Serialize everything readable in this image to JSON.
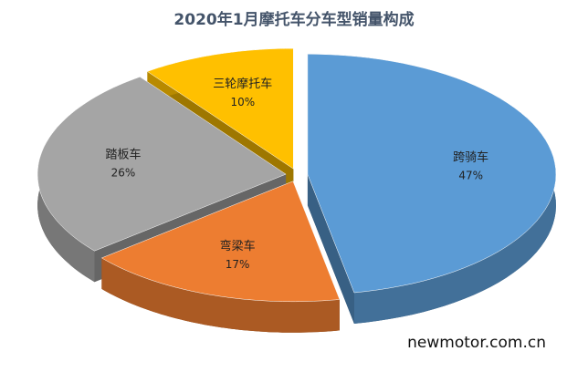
{
  "chart_data": {
    "type": "pie",
    "title": "2020年1月摩托车分车型销量构成",
    "categories": [
      "跨骑车",
      "弯梁车",
      "踏板车",
      "三轮摩托车"
    ],
    "values": [
      47,
      17,
      26,
      10
    ],
    "value_labels": [
      "47%",
      "17%",
      "26%",
      "10%"
    ],
    "colors": [
      "#5b9bd5",
      "#ed7d31",
      "#a5a5a5",
      "#ffc000"
    ],
    "watermark": "newmotor.com.cn"
  }
}
